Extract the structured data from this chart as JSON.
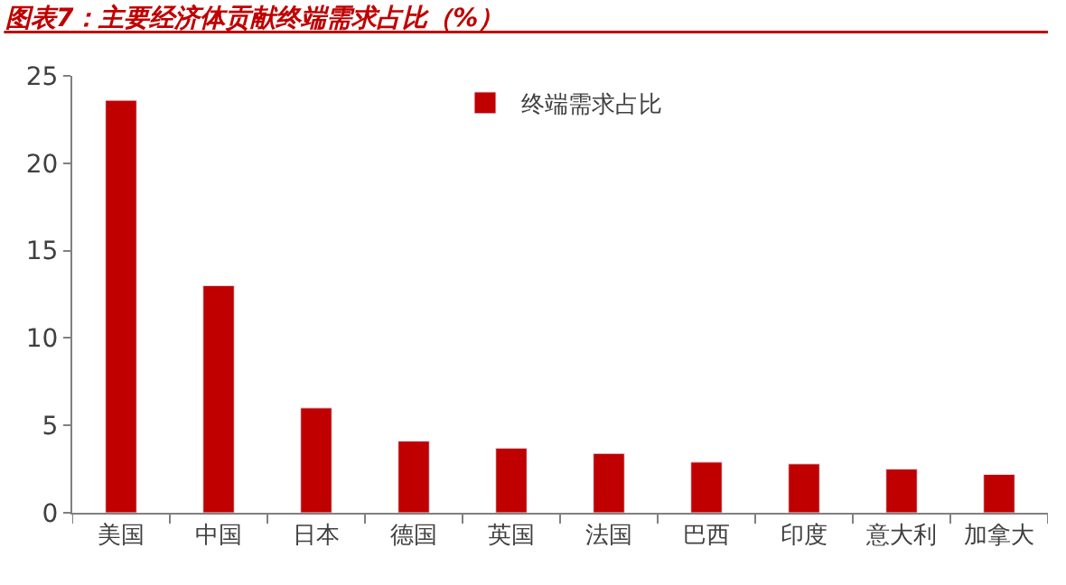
{
  "chart_data": {
    "type": "bar",
    "title": "图表7：主要经济体贡献终端需求占比（%）",
    "categories": [
      "美国",
      "中国",
      "日本",
      "德国",
      "英国",
      "法国",
      "巴西",
      "印度",
      "意大利",
      "加拿大"
    ],
    "series": [
      {
        "name": "终端需求占比",
        "color": "#c00000",
        "values": [
          23.6,
          13.0,
          6.0,
          4.1,
          3.7,
          3.4,
          2.9,
          2.8,
          2.5,
          2.2
        ]
      }
    ],
    "ylim": [
      0,
      25
    ],
    "yticks": [
      0,
      5,
      10,
      15,
      20,
      25
    ],
    "legend": "top"
  }
}
